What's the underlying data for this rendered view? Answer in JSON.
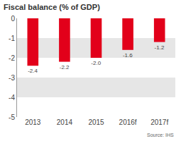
{
  "chart_data": {
    "type": "bar",
    "title": "Fiscal balance (% of GDP)",
    "categories": [
      "2013",
      "2014",
      "2015",
      "2016f",
      "2017f"
    ],
    "values": [
      -2.4,
      -2.2,
      -2.0,
      -1.6,
      -1.2
    ],
    "value_labels": [
      "-2.4",
      "-2.2",
      "-2.0",
      "-1.6",
      "-1.2"
    ],
    "color": "#e2001a",
    "ylim": [
      -5,
      0
    ],
    "yticks": [
      0,
      -1,
      -2,
      -3,
      -4,
      -5
    ],
    "grid": true,
    "data_labels": true,
    "source": "Source: IHS"
  }
}
